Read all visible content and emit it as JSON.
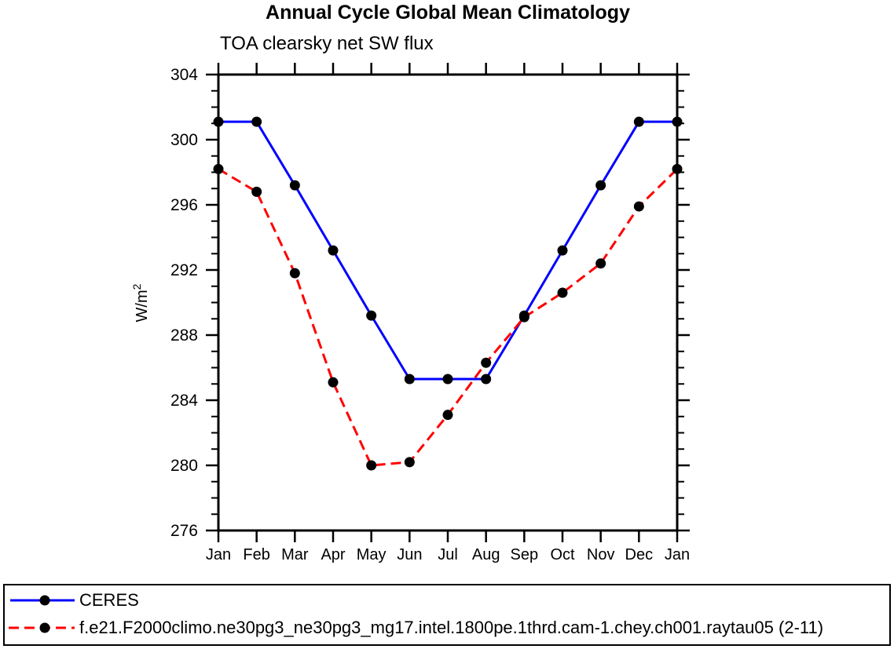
{
  "header": {
    "note": ""
  },
  "chart_data": {
    "type": "line",
    "title": "Annual Cycle Global Mean Climatology",
    "subtitle": "TOA clearsky net SW flux",
    "xlabel": "",
    "ylabel": "W/m²",
    "ylim": [
      276,
      304
    ],
    "ytick_interval": 4,
    "yminor_interval": 1,
    "grid": false,
    "legend_position": "bottom box, full width",
    "categories": [
      "Jan",
      "Feb",
      "Mar",
      "Apr",
      "May",
      "Jun",
      "Jul",
      "Aug",
      "Sep",
      "Oct",
      "Nov",
      "Dec",
      "Jan"
    ],
    "series": [
      {
        "name": "CERES",
        "color": "#0000ff",
        "style": "solid",
        "marker": "circle",
        "marker_color": "#000000",
        "values": [
          301.1,
          301.1,
          297.2,
          293.2,
          289.2,
          285.3,
          285.3,
          285.3,
          289.2,
          293.2,
          297.2,
          301.1,
          301.1
        ]
      },
      {
        "name": "f.e21.F2000climo.ne30pg3_ne30pg3_mg17.intel.1800pe.1thrd.cam-1.chey.ch001.raytau05 (2-11)",
        "color": "#ff0000",
        "style": "dashed",
        "marker": "circle",
        "marker_color": "#000000",
        "values": [
          298.2,
          296.8,
          291.8,
          285.1,
          280.0,
          280.2,
          283.1,
          286.3,
          289.1,
          290.6,
          292.4,
          295.9,
          298.2
        ]
      }
    ],
    "frame_color": "#000000"
  }
}
